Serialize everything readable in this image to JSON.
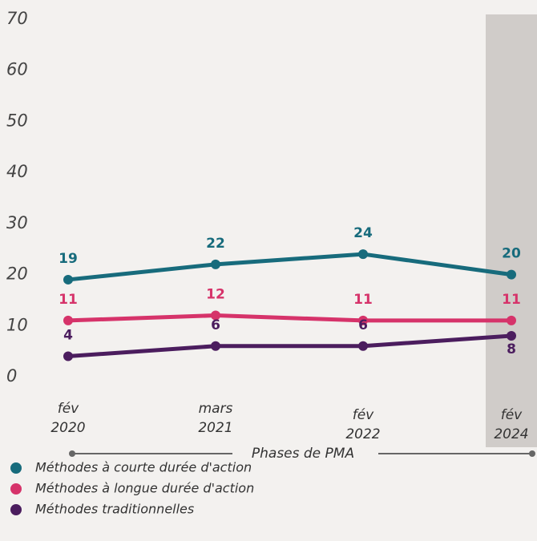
{
  "chart_data": {
    "type": "line",
    "x_label": "Phases de PMA",
    "categories": [
      "fév 2020",
      "mars 2021",
      "fév 2022",
      "fév 2024"
    ],
    "series": [
      {
        "name": "Méthodes à courte durée d'action",
        "color": "#176b7c",
        "values": [
          19,
          22,
          24,
          20
        ]
      },
      {
        "name": "Méthodes à longue durée d'action",
        "color": "#d6336a",
        "values": [
          11,
          12,
          11,
          11
        ]
      },
      {
        "name": "Méthodes traditionnelles",
        "color": "#4b1d5e",
        "values": [
          4,
          6,
          6,
          8
        ]
      }
    ],
    "ylim": [
      0,
      70
    ],
    "yticks": [
      0,
      10,
      20,
      30,
      40,
      50,
      60,
      70
    ],
    "highlight_color": "#d0ccc9"
  }
}
